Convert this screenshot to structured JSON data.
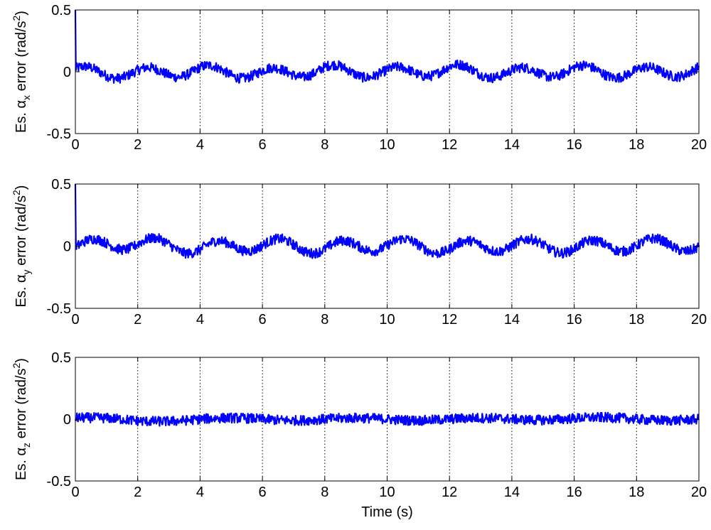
{
  "chart_data": [
    {
      "type": "line",
      "ylabel": {
        "prefix": "Es. α",
        "subscript": "x",
        "suffix": " error (rad/s",
        "superscript": "2",
        "end": ")"
      },
      "xlabel": "",
      "xlim": [
        0,
        20
      ],
      "ylim": [
        -0.5,
        0.5
      ],
      "xticks": [
        "0",
        "2",
        "4",
        "6",
        "8",
        "10",
        "12",
        "14",
        "16",
        "18",
        "20"
      ],
      "yticks": [
        "-0.5",
        "0",
        "0.5"
      ],
      "grid": "vertical dotted",
      "color": "#0000ff",
      "noise": 0.04,
      "initial_spike": 0.5,
      "oscillation": {
        "amplitude": 0.045,
        "period": 2.0,
        "phase": 0.6
      },
      "series": [
        {
          "x_range": [
            0,
            20
          ],
          "trend_description_values": [
            0.0,
            -0.04,
            0.03,
            -0.05,
            0.04,
            -0.03,
            0.05,
            -0.04,
            0.03,
            -0.03,
            0.04
          ]
        }
      ]
    },
    {
      "type": "line",
      "ylabel": {
        "prefix": "Es. α",
        "subscript": "y",
        "suffix": " error (rad/s",
        "superscript": "2",
        "end": ")"
      },
      "xlabel": "",
      "xlim": [
        0,
        20
      ],
      "ylim": [
        -0.5,
        0.5
      ],
      "xticks": [
        "0",
        "2",
        "4",
        "6",
        "8",
        "10",
        "12",
        "14",
        "16",
        "18",
        "20"
      ],
      "yticks": [
        "-0.5",
        "0",
        "0.5"
      ],
      "grid": "vertical dotted",
      "color": "#0000ff",
      "noise": 0.04,
      "initial_spike": 0.5,
      "oscillation": {
        "amplitude": 0.05,
        "period": 2.0,
        "phase": -0.2
      },
      "series": [
        {
          "x_range": [
            0,
            20
          ],
          "trend_description_values": [
            0.0,
            0.08,
            -0.05,
            0.05,
            -0.04,
            0.05,
            -0.04,
            0.04,
            -0.03,
            0.04,
            0.02
          ]
        }
      ]
    },
    {
      "type": "line",
      "ylabel": {
        "prefix": "Es. α",
        "subscript": "z",
        "suffix": " error (rad/s",
        "superscript": "2",
        "end": ")"
      },
      "xlabel": "Time (s)",
      "xlim": [
        0,
        20
      ],
      "ylim": [
        -0.5,
        0.5
      ],
      "xticks": [
        "0",
        "2",
        "4",
        "6",
        "8",
        "10",
        "12",
        "14",
        "16",
        "18",
        "20"
      ],
      "yticks": [
        "-0.5",
        "0",
        "0.5"
      ],
      "grid": "vertical dotted",
      "color": "#0000ff",
      "noise": 0.04,
      "initial_spike": 0.0,
      "oscillation": {
        "amplitude": 0.01,
        "period": 4.0,
        "phase": 0.0
      },
      "series": [
        {
          "x_range": [
            0,
            20
          ],
          "trend_description_values": [
            0.03,
            -0.04,
            0.0,
            0.0,
            0.0,
            0.0,
            0.0,
            0.0,
            0.02,
            0.0,
            0.0
          ]
        }
      ]
    }
  ]
}
